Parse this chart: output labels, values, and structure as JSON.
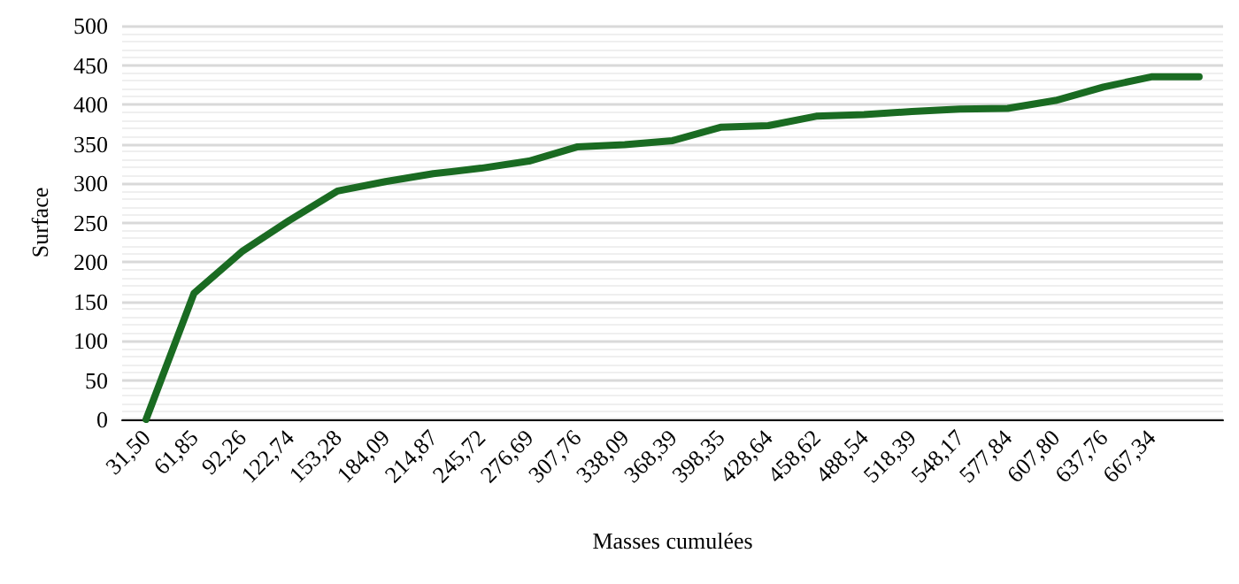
{
  "chart_data": {
    "type": "line",
    "xlabel": "Masses cumulées",
    "ylabel": "Surface",
    "categories": [
      "31,50",
      "61,85",
      "92,26",
      "122,74",
      "153,28",
      "184,09",
      "214,87",
      "245,72",
      "276,69",
      "307,76",
      "338,09",
      "368,39",
      "398,35",
      "428,64",
      "458,62",
      "488,54",
      "518,39",
      "548,17",
      "577,84",
      "607,80",
      "637,76",
      "667,34",
      null
    ],
    "series": [
      {
        "color": "#1a6b22",
        "values": [
          0,
          160,
          213,
          253,
          290,
          302,
          312,
          319,
          328,
          346,
          349,
          354,
          371,
          373,
          385,
          387,
          391,
          394,
          395,
          405,
          422,
          435,
          435
        ]
      }
    ],
    "ylim": [
      0,
      500
    ],
    "yticks": [
      0,
      50,
      100,
      150,
      200,
      250,
      300,
      350,
      400,
      450,
      500
    ],
    "grid": "y",
    "marker": "none",
    "line_style": "solid"
  }
}
